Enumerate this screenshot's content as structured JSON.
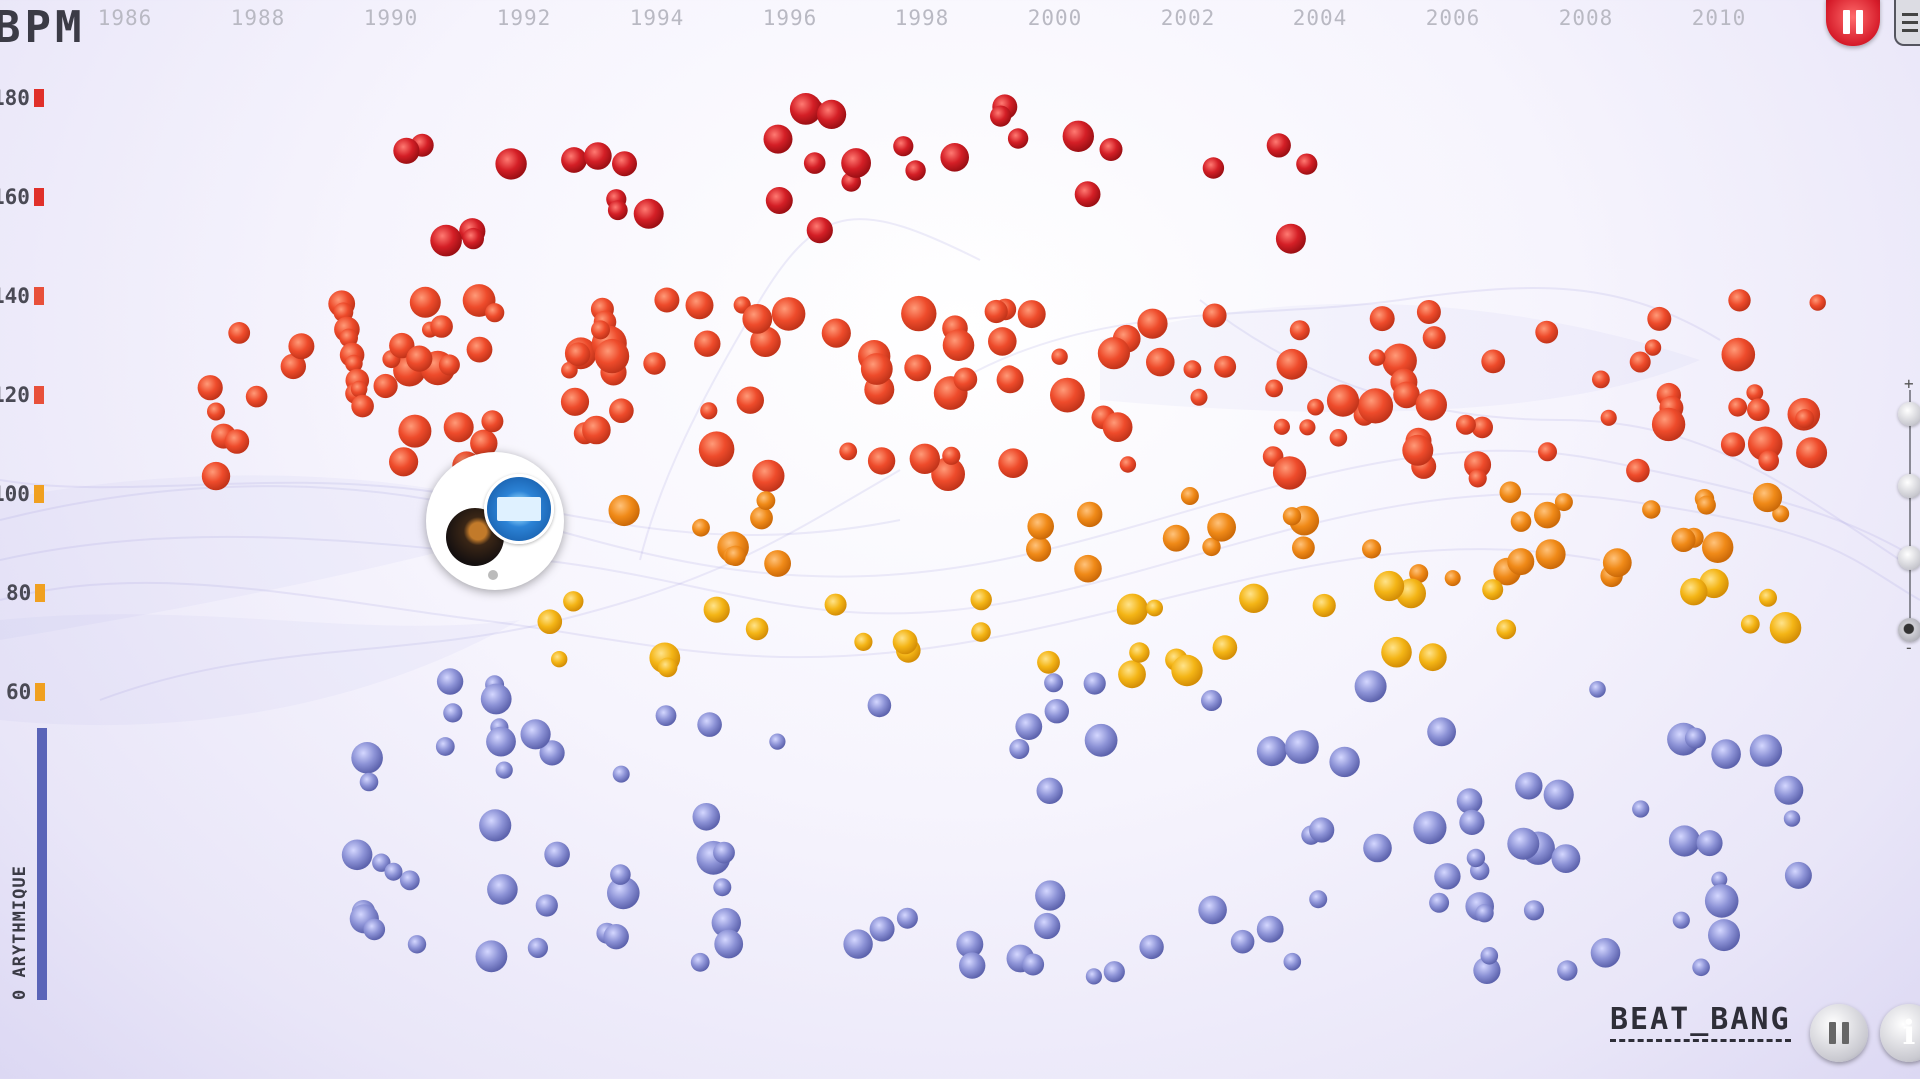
{
  "header": {
    "app_label": "BPM",
    "years": [
      "1986",
      "1988",
      "1990",
      "1992",
      "1994",
      "1996",
      "1998",
      "2000",
      "2002",
      "2004",
      "2006",
      "2008",
      "2010"
    ]
  },
  "bpm_axis": {
    "ticks": [
      {
        "label": "180",
        "color": "#e0302a"
      },
      {
        "label": "160",
        "color": "#e0302a"
      },
      {
        "label": "140",
        "color": "#e8503a"
      },
      {
        "label": "120",
        "color": "#e8503a"
      },
      {
        "label": "100",
        "color": "#f0a020"
      },
      {
        "label": "80",
        "color": "#f0a020"
      },
      {
        "label": "60",
        "color": "#f0a020"
      }
    ],
    "arythmique_label": "0 ARYTHMIQUE",
    "arythmique_color": "#5a64b8"
  },
  "controls": {
    "top_pause_icon": "pause-icon",
    "menu_icon": "menu-icon",
    "zoom_plus": "+",
    "zoom_minus": "-",
    "zoom_levels": 4,
    "zoom_selected_index": 3
  },
  "footer": {
    "brand": "BEAT_BANG",
    "pause_icon": "pause-icon",
    "info_label": "i"
  },
  "colors": {
    "fast": "#d41f26",
    "mid": "#ee4b2b",
    "slow": "#f08a18",
    "slower": "#f4b516",
    "arythmique": "#8c92d6"
  },
  "popup": {
    "visible": true,
    "icon": "album-cover-icon"
  }
}
